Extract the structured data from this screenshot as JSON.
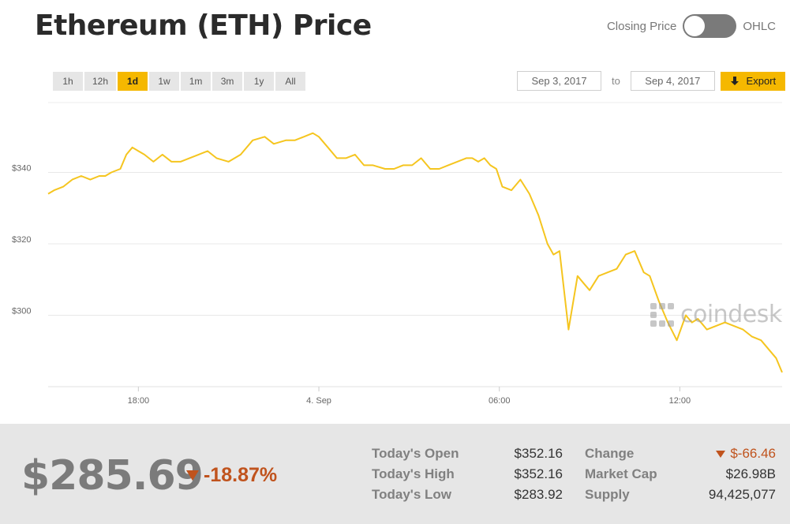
{
  "header": {
    "title": "Ethereum (ETH) Price"
  },
  "toggle": {
    "left_label": "Closing Price",
    "right_label": "OHLC"
  },
  "ranges": [
    {
      "label": "1h",
      "active": false
    },
    {
      "label": "12h",
      "active": false
    },
    {
      "label": "1d",
      "active": true
    },
    {
      "label": "1w",
      "active": false
    },
    {
      "label": "1m",
      "active": false
    },
    {
      "label": "3m",
      "active": false
    },
    {
      "label": "1y",
      "active": false
    },
    {
      "label": "All",
      "active": false
    }
  ],
  "dates": {
    "from": "Sep 3, 2017",
    "to_label": "to",
    "to": "Sep 4, 2017",
    "export_label": "Export"
  },
  "colors": {
    "accent": "#f5b800",
    "line": "#f5c51f",
    "negative": "#c0531d"
  },
  "watermark": {
    "text": "coindesk"
  },
  "summary": {
    "price": "$285.69",
    "pct_change": "-18.87%",
    "open_label": "Today's Open",
    "open_value": "$352.16",
    "high_label": "Today's High",
    "high_value": "$352.16",
    "low_label": "Today's Low",
    "low_value": "$283.92",
    "change_label": "Change",
    "change_value": "$-66.46",
    "mcap_label": "Market Cap",
    "mcap_value": "$26.98B",
    "supply_label": "Supply",
    "supply_value": "94,425,077"
  },
  "chart_data": {
    "type": "line",
    "x_unit": "hours after 15:00 on Sep 3, 2017",
    "y_ticks": [
      {
        "value": 300,
        "label": "$300"
      },
      {
        "value": 320,
        "label": "$320"
      },
      {
        "value": 340,
        "label": "$340"
      }
    ],
    "x_ticks": [
      {
        "value": 3,
        "label": "18:00"
      },
      {
        "value": 9,
        "label": "4. Sep"
      },
      {
        "value": 15,
        "label": "06:00"
      },
      {
        "value": 21,
        "label": "12:00"
      }
    ],
    "ylim": [
      280,
      360
    ],
    "xlim": [
      0,
      24.4
    ],
    "grid": true,
    "legend": "none",
    "series": [
      {
        "x": [
          0,
          0.2,
          0.5,
          0.8,
          1.1,
          1.4,
          1.7,
          1.9,
          2.1,
          2.4,
          2.6,
          2.8,
          3.0,
          3.2,
          3.5,
          3.8,
          4.1,
          4.4,
          4.7,
          5.0,
          5.3,
          5.6,
          6.0,
          6.4,
          6.8,
          7.2,
          7.5,
          7.9,
          8.2,
          8.5,
          8.8,
          9.0,
          9.3,
          9.6,
          9.9,
          10.2,
          10.5,
          10.8,
          11.2,
          11.5,
          11.8,
          12.1,
          12.4,
          12.7,
          13.0,
          13.3,
          13.6,
          13.9,
          14.1,
          14.3,
          14.5,
          14.7,
          14.9,
          15.1,
          15.4,
          15.7,
          16.0,
          16.3,
          16.6,
          16.8,
          17.0,
          17.3,
          17.6,
          17.8,
          18.0,
          18.3,
          18.6,
          18.9,
          19.2,
          19.5,
          19.8,
          20.0,
          20.3,
          20.6,
          20.9,
          21.2,
          21.4,
          21.6,
          21.9,
          22.2,
          22.5,
          22.8,
          23.1,
          23.4,
          23.7,
          24.0,
          24.2,
          24.4
        ],
        "y": [
          334,
          335,
          336,
          338,
          339,
          338,
          339,
          339,
          340,
          341,
          345,
          347,
          346,
          345,
          343,
          345,
          343,
          343,
          344,
          345,
          346,
          344,
          343,
          345,
          349,
          350,
          348,
          349,
          349,
          350,
          351,
          350,
          347,
          344,
          344,
          345,
          342,
          342,
          341,
          341,
          342,
          342,
          344,
          341,
          341,
          342,
          343,
          344,
          344,
          343,
          344,
          342,
          341,
          336,
          335,
          338,
          334,
          328,
          320,
          317,
          318,
          296,
          311,
          309,
          307,
          311,
          312,
          313,
          317,
          318,
          312,
          311,
          304,
          298,
          293,
          300,
          298,
          299,
          296,
          297,
          298,
          297,
          296,
          294,
          293,
          290,
          288,
          284
        ]
      }
    ]
  }
}
